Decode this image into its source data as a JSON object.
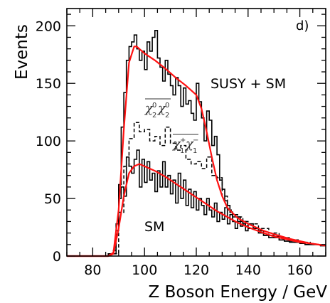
{
  "chart_data": {
    "type": "line",
    "panel_label": "d)",
    "xlabel": "Z Boson Energy / GeV",
    "ylabel": "Events",
    "xlim": [
      70,
      170
    ],
    "ylim": [
      0,
      215
    ],
    "xticks": [
      80,
      100,
      120,
      140,
      160
    ],
    "yticks": [
      0,
      50,
      100,
      150,
      200
    ],
    "grid": false,
    "annotations": {
      "susy_sm": "SUSY + SM",
      "sm": "SM",
      "chi20_sym": "χ",
      "chi20_sup": "0",
      "chi20_sub": "2",
      "chi1_sym": "χ",
      "chi1_sup": "+",
      "chi1_sup2": "−",
      "chi1_sub": "1"
    },
    "series": [
      {
        "style": "histogram-solid",
        "color": "#000000",
        "x": [
          70,
          72,
          74,
          76,
          78,
          80,
          82,
          84,
          86,
          88,
          89,
          90,
          91,
          92,
          93,
          94,
          95,
          96,
          97,
          98,
          99,
          100,
          101,
          102,
          103,
          104,
          105,
          106,
          107,
          108,
          109,
          110,
          111,
          112,
          113,
          114,
          115,
          116,
          117,
          118,
          119,
          120,
          121,
          122,
          123,
          124,
          125,
          126,
          127,
          128,
          129,
          130,
          131,
          132,
          133,
          134,
          135,
          136,
          137,
          138,
          139,
          140,
          142,
          144,
          146,
          148,
          150,
          152,
          154,
          156,
          158,
          160,
          162,
          164,
          166,
          168
        ],
        "y": [
          0,
          0,
          0,
          0,
          0,
          0,
          0,
          0,
          2,
          5,
          22,
          62,
          112,
          142,
          170,
          182,
          186,
          192,
          180,
          170,
          178,
          162,
          186,
          178,
          190,
          196,
          172,
          164,
          152,
          170,
          158,
          148,
          140,
          155,
          148,
          130,
          146,
          132,
          135,
          124,
          118,
          150,
          134,
          120,
          100,
          126,
          118,
          96,
          104,
          88,
          66,
          58,
          48,
          44,
          38,
          34,
          34,
          30,
          30,
          28,
          26,
          24,
          24,
          22,
          18,
          16,
          17,
          14,
          13,
          13,
          12,
          11,
          10,
          10,
          10,
          9
        ]
      },
      {
        "style": "histogram-dashed",
        "color": "#000000",
        "x": [
          88,
          90,
          92,
          94,
          96,
          98,
          100,
          102,
          104,
          106,
          108,
          110,
          112,
          114,
          116,
          118,
          120,
          122,
          124,
          126,
          128,
          130,
          132,
          134,
          136,
          138,
          140,
          144,
          148,
          152,
          156,
          160,
          164,
          168
        ],
        "y": [
          2,
          38,
          78,
          102,
          116,
          108,
          110,
          100,
          104,
          96,
          112,
          98,
          92,
          96,
          84,
          80,
          82,
          76,
          86,
          70,
          68,
          52,
          40,
          36,
          34,
          30,
          28,
          24,
          20,
          16,
          14,
          12,
          10,
          9
        ]
      },
      {
        "style": "histogram-solid",
        "color": "#000000",
        "x": [
          88,
          89,
          90,
          91,
          92,
          93,
          94,
          95,
          96,
          97,
          98,
          99,
          100,
          101,
          102,
          103,
          104,
          105,
          106,
          107,
          108,
          109,
          110,
          111,
          112,
          113,
          114,
          115,
          116,
          117,
          118,
          119,
          120,
          121,
          122,
          123,
          124,
          125,
          126,
          127,
          128,
          129,
          130,
          131,
          132,
          133,
          134,
          135,
          136,
          137,
          138,
          139,
          140,
          142,
          144,
          146,
          148,
          150,
          152,
          154,
          156,
          158,
          160,
          162,
          164,
          166,
          168
        ],
        "y": [
          2,
          28,
          50,
          60,
          52,
          86,
          78,
          72,
          84,
          92,
          60,
          84,
          64,
          82,
          66,
          72,
          56,
          74,
          60,
          82,
          60,
          70,
          54,
          66,
          46,
          72,
          50,
          66,
          44,
          58,
          42,
          56,
          40,
          50,
          44,
          36,
          50,
          40,
          34,
          46,
          30,
          38,
          32,
          42,
          28,
          36,
          30,
          24,
          34,
          26,
          30,
          22,
          28,
          24,
          20,
          18,
          18,
          16,
          14,
          13,
          12,
          12,
          11,
          10,
          10,
          10,
          9
        ]
      },
      {
        "style": "fit-curve",
        "color": "#ff1111",
        "x": [
          70,
          86,
          88,
          90,
          92,
          94,
          96,
          97,
          98,
          100,
          104,
          108,
          112,
          116,
          120,
          122,
          124,
          126,
          128,
          130,
          132,
          136,
          140,
          146,
          150,
          156,
          160,
          164,
          170
        ],
        "y": [
          0,
          0,
          3,
          40,
          110,
          168,
          182,
          182,
          180,
          176,
          170,
          163,
          155,
          148,
          140,
          128,
          108,
          86,
          66,
          52,
          42,
          33,
          28,
          22,
          19,
          15,
          13,
          11,
          9
        ]
      },
      {
        "style": "fit-curve",
        "color": "#ff1111",
        "x": [
          70,
          86,
          88,
          90,
          92,
          94,
          96,
          98,
          100,
          104,
          108,
          112,
          116,
          120,
          124,
          128,
          132,
          136,
          140,
          146,
          150,
          156,
          160,
          164,
          170
        ],
        "y": [
          0,
          0,
          2,
          24,
          52,
          72,
          78,
          80,
          78,
          74,
          69,
          63,
          57,
          51,
          45,
          39,
          34,
          29,
          25,
          20,
          17,
          14,
          12,
          11,
          9
        ]
      }
    ]
  }
}
